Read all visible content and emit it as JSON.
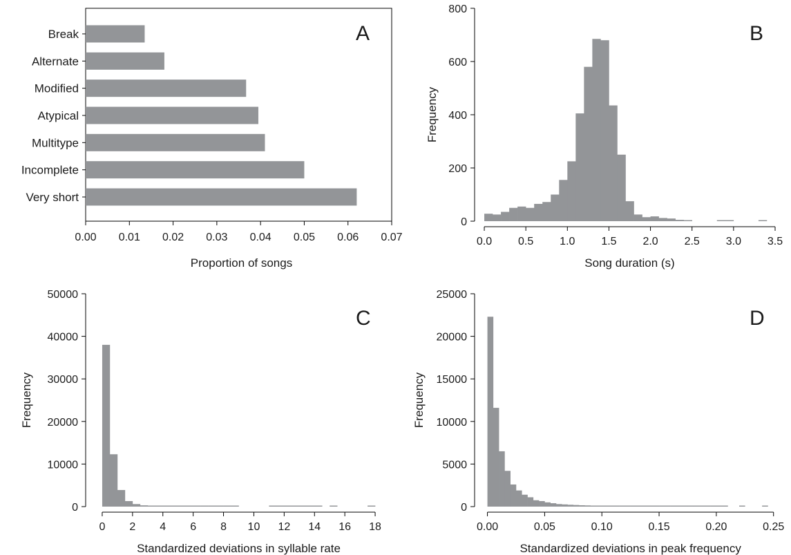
{
  "colors": {
    "bar": "#939598",
    "axis": "#000000",
    "text": "#1a1a1a"
  },
  "chart_data": [
    {
      "panel": "A",
      "type": "bar",
      "orientation": "horizontal",
      "xlabel": "Proportion of songs",
      "ylabel": "",
      "xlim": [
        0,
        0.07
      ],
      "xticks": [
        "0.00",
        "0.01",
        "0.02",
        "0.03",
        "0.04",
        "0.05",
        "0.06",
        "0.07"
      ],
      "categories": [
        "Break",
        "Alternate",
        "Modified",
        "Atypical",
        "Multitype",
        "Incomplete",
        "Very short"
      ],
      "values": [
        0.0135,
        0.018,
        0.0367,
        0.0395,
        0.041,
        0.05,
        0.062
      ],
      "grid": false
    },
    {
      "panel": "B",
      "type": "bar",
      "subtype": "histogram",
      "xlabel": "Song duration (s)",
      "ylabel": "Frequency",
      "xlim": [
        -0.1,
        3.55
      ],
      "ylim": [
        0,
        800
      ],
      "xticks": [
        "0.0",
        "0.5",
        "1.0",
        "1.5",
        "2.0",
        "2.5",
        "3.0",
        "3.5"
      ],
      "yticks": [
        "0",
        "200",
        "400",
        "600",
        "800"
      ],
      "bin_width": 0.1,
      "bin_starts": [
        0.0,
        0.1,
        0.2,
        0.3,
        0.4,
        0.5,
        0.6,
        0.7,
        0.8,
        0.9,
        1.0,
        1.1,
        1.2,
        1.3,
        1.4,
        1.5,
        1.6,
        1.7,
        1.8,
        1.9,
        2.0,
        2.1,
        2.2,
        2.3,
        2.4,
        2.8,
        2.9,
        3.3
      ],
      "values": [
        28,
        25,
        35,
        50,
        55,
        50,
        65,
        72,
        100,
        155,
        225,
        405,
        580,
        685,
        680,
        435,
        250,
        75,
        25,
        15,
        18,
        12,
        10,
        5,
        3,
        3,
        3,
        2
      ],
      "grid": false
    },
    {
      "panel": "C",
      "type": "bar",
      "subtype": "histogram",
      "xlabel": "Standardized deviations in syllable rate",
      "ylabel": "Frequency",
      "xlim": [
        -1,
        19
      ],
      "ylim": [
        0,
        50000
      ],
      "xticks": [
        "0",
        "2",
        "4",
        "6",
        "8",
        "10",
        "12",
        "14",
        "16",
        "18"
      ],
      "yticks": [
        "0",
        "10000",
        "20000",
        "30000",
        "40000",
        "50000"
      ],
      "bin_width": 0.5,
      "bin_starts": [
        0,
        0.5,
        1,
        1.5,
        2,
        2.5,
        3,
        3.5,
        4,
        4.5,
        5,
        5.5,
        6,
        6.5,
        7,
        7.5,
        8,
        8.5,
        11,
        11.5,
        12,
        12.5,
        13,
        13.5,
        14,
        15,
        17.5
      ],
      "values": [
        38000,
        12300,
        3900,
        1300,
        600,
        300,
        200,
        150,
        100,
        90,
        80,
        70,
        60,
        55,
        50,
        45,
        40,
        35,
        30,
        25,
        25,
        20,
        20,
        15,
        15,
        10,
        10
      ],
      "grid": false
    },
    {
      "panel": "D",
      "type": "bar",
      "subtype": "histogram",
      "xlabel": "Standardized deviations in peak frequency",
      "ylabel": "Frequency",
      "xlim": [
        -0.01,
        0.255
      ],
      "ylim": [
        0,
        25000
      ],
      "xticks": [
        "0.00",
        "0.05",
        "0.10",
        "0.15",
        "0.20",
        "0.25"
      ],
      "yticks": [
        "0",
        "5000",
        "10000",
        "15000",
        "20000",
        "25000"
      ],
      "bin_width": 0.005,
      "bin_starts": [
        0,
        0.005,
        0.01,
        0.015,
        0.02,
        0.025,
        0.03,
        0.035,
        0.04,
        0.045,
        0.05,
        0.055,
        0.06,
        0.065,
        0.07,
        0.075,
        0.08,
        0.085,
        0.09,
        0.095,
        0.1,
        0.105,
        0.11,
        0.115,
        0.12,
        0.125,
        0.13,
        0.135,
        0.14,
        0.145,
        0.15,
        0.155,
        0.16,
        0.165,
        0.17,
        0.175,
        0.18,
        0.185,
        0.19,
        0.195,
        0.2,
        0.205,
        0.22,
        0.24
      ],
      "values": [
        22300,
        11600,
        6500,
        4200,
        2600,
        1900,
        1400,
        1100,
        750,
        650,
        500,
        400,
        300,
        260,
        220,
        190,
        160,
        140,
        120,
        100,
        90,
        80,
        70,
        60,
        55,
        50,
        45,
        40,
        35,
        32,
        30,
        28,
        25,
        22,
        20,
        18,
        16,
        14,
        12,
        10,
        10,
        8,
        10,
        8
      ],
      "grid": false
    }
  ],
  "panels": [
    {
      "letter": "A"
    },
    {
      "letter": "B"
    },
    {
      "letter": "C"
    },
    {
      "letter": "D"
    }
  ]
}
